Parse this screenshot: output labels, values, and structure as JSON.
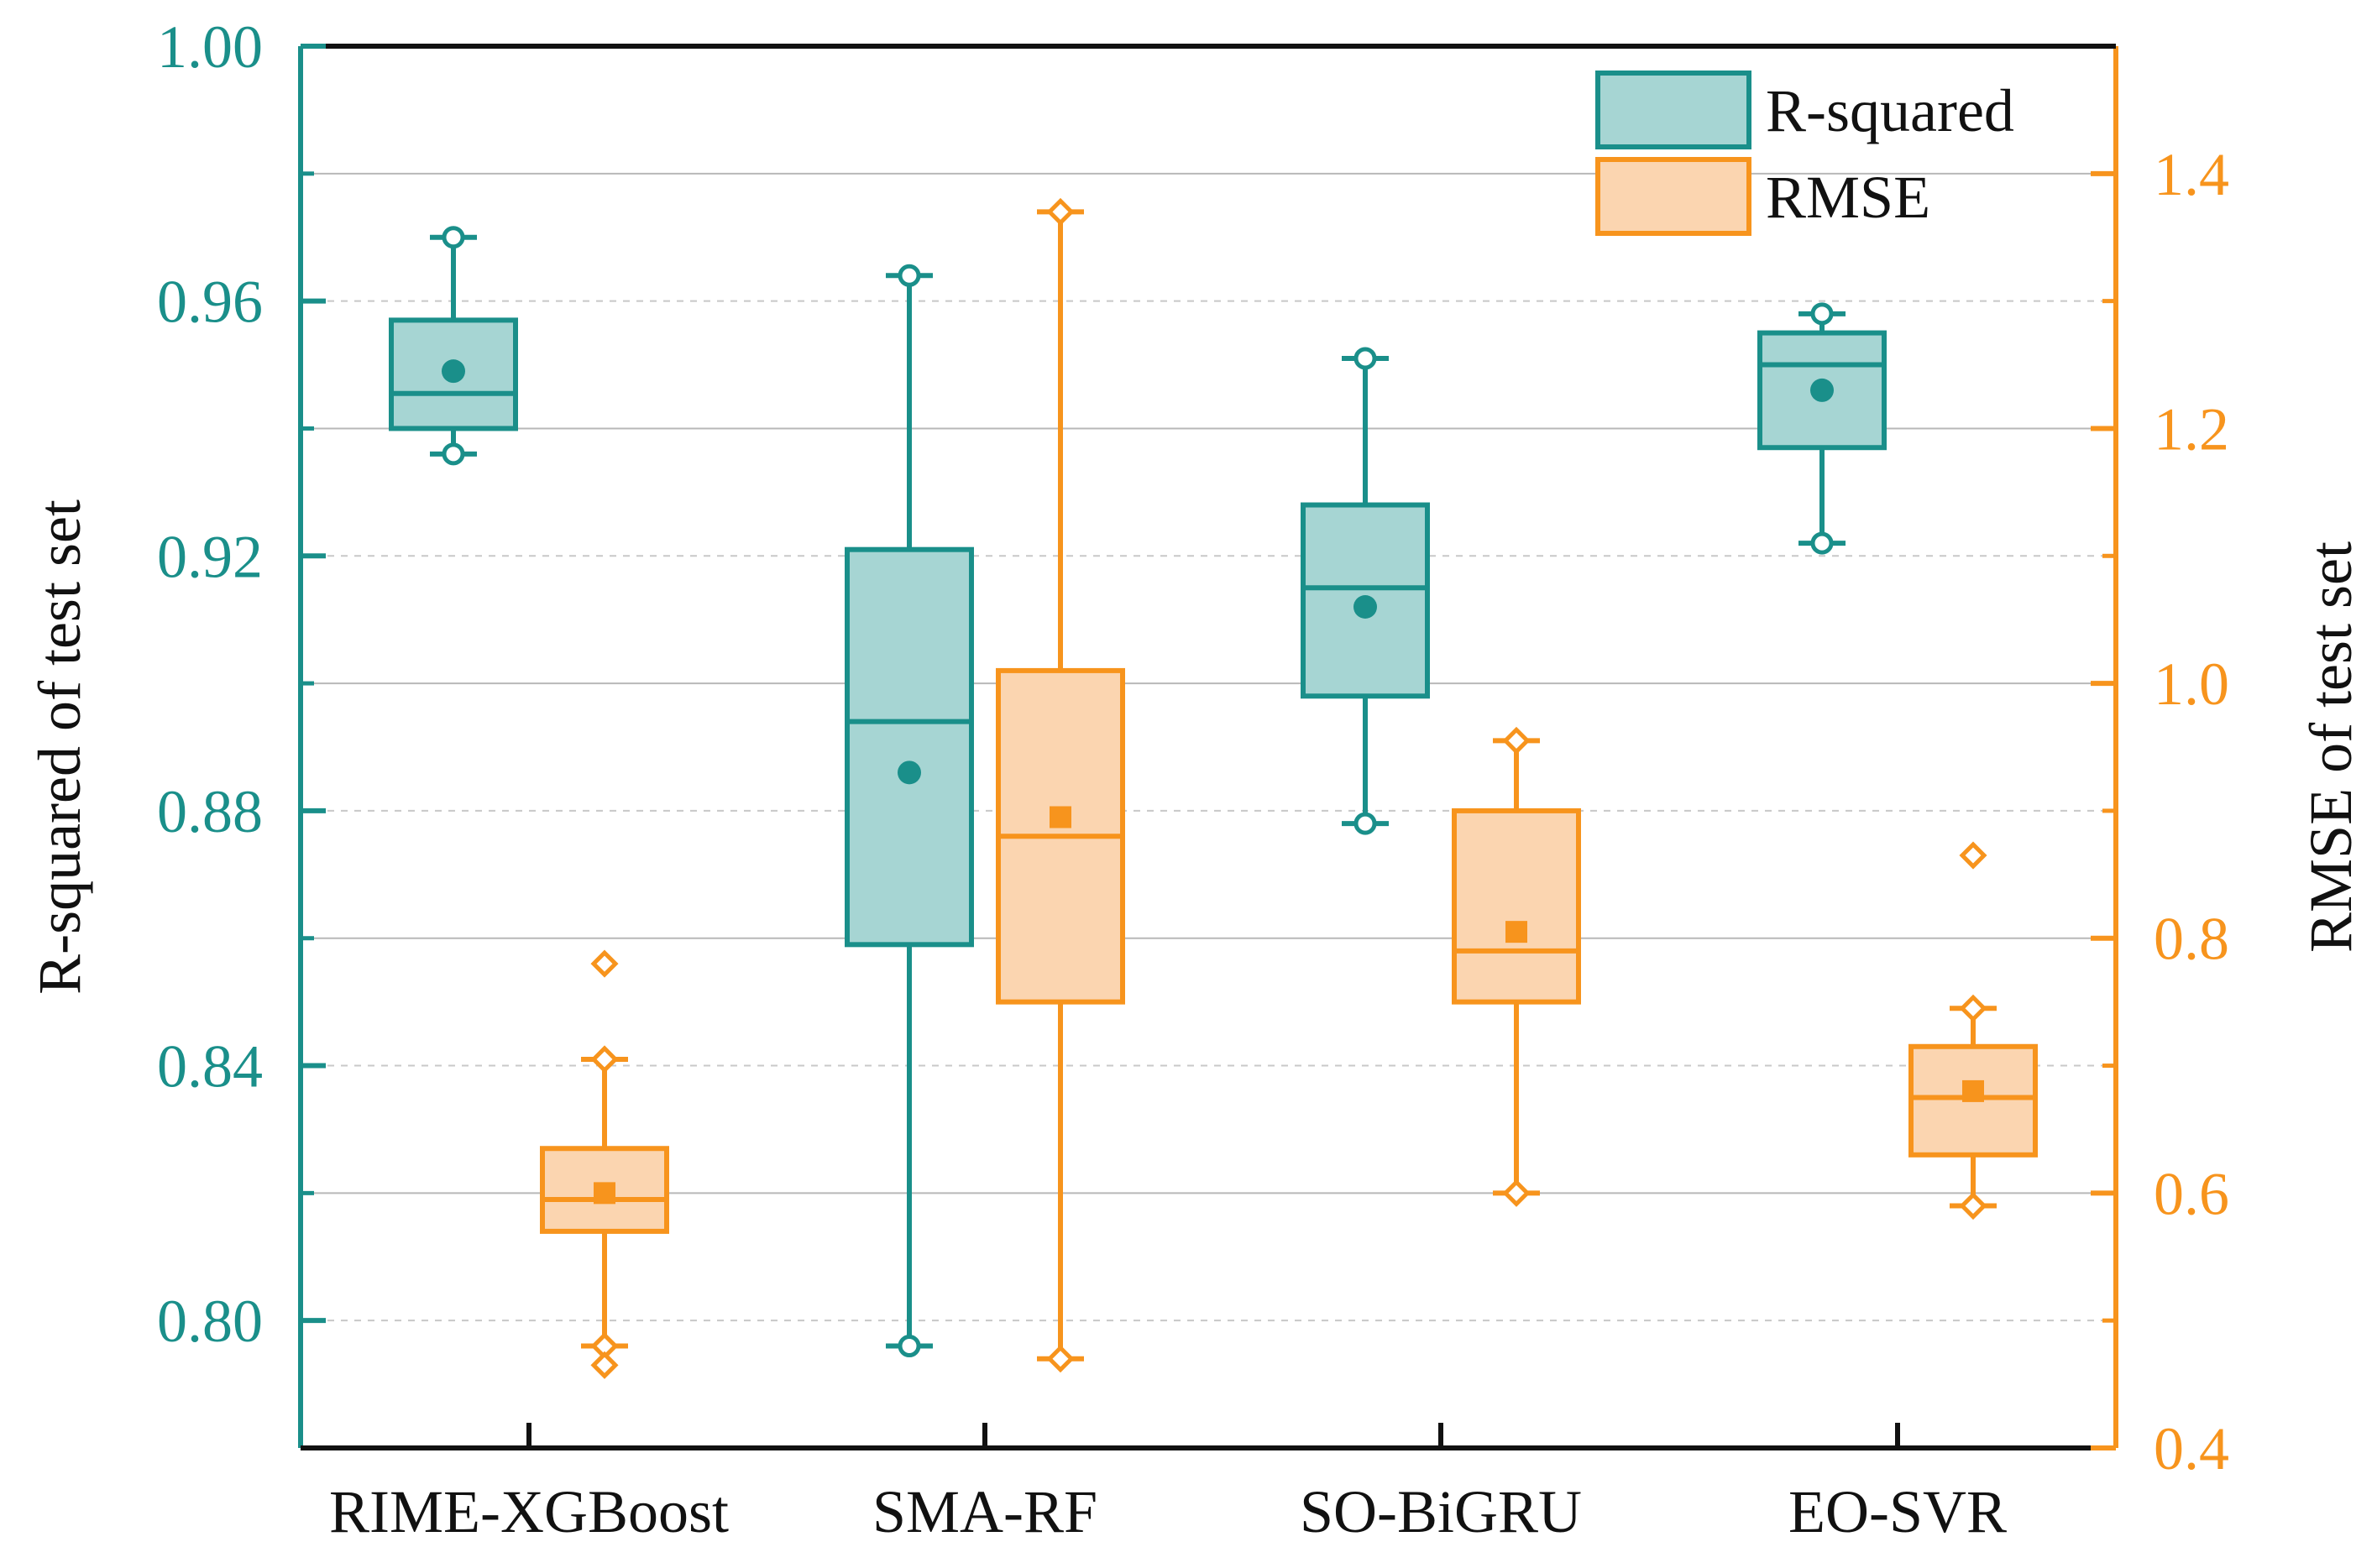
{
  "chart_data": {
    "type": "box",
    "categories": [
      "RIME-XGBoost",
      "SMA-RF",
      "SO-BiGRU",
      "EO-SVR"
    ],
    "left_axis": {
      "label": "R-squared of test set",
      "ylim": [
        0.78,
        1.0
      ],
      "ticks": [
        0.8,
        0.84,
        0.88,
        0.92,
        0.96,
        1.0
      ],
      "tick_labels": [
        "0.80",
        "0.84",
        "0.88",
        "0.92",
        "0.96",
        "1.00"
      ],
      "color": "#1a8f8a"
    },
    "right_axis": {
      "label": "RMSE of test set",
      "ylim": [
        0.4,
        1.5
      ],
      "ticks": [
        0.4,
        0.6,
        0.8,
        1.0,
        1.2,
        1.4
      ],
      "tick_labels": [
        "0.4",
        "0.6",
        "0.8",
        "1.0",
        "1.2",
        "1.4"
      ],
      "color": "#f7941d"
    },
    "grid": true,
    "legend": {
      "position": "top-right",
      "entries": [
        {
          "label": "R-squared",
          "color": "#1a8f8a",
          "fill": "#a6d5d3"
        },
        {
          "label": "RMSE",
          "color": "#f7941d",
          "fill": "#fbd5b0"
        }
      ]
    },
    "series": [
      {
        "name": "R-squared",
        "axis": "left",
        "color": "#1a8f8a",
        "fill": "#a6d5d3",
        "mean_marker": "circle",
        "boxes": [
          {
            "category": "RIME-XGBoost",
            "whisker_low": 0.936,
            "q1": 0.94,
            "median": 0.9455,
            "q3": 0.957,
            "whisker_high": 0.97,
            "mean": 0.949,
            "outliers": []
          },
          {
            "category": "SMA-RF",
            "whisker_low": 0.796,
            "q1": 0.859,
            "median": 0.894,
            "q3": 0.921,
            "whisker_high": 0.964,
            "mean": 0.886,
            "outliers": []
          },
          {
            "category": "SO-BiGRU",
            "whisker_low": 0.878,
            "q1": 0.898,
            "median": 0.915,
            "q3": 0.928,
            "whisker_high": 0.951,
            "mean": 0.912,
            "outliers": []
          },
          {
            "category": "EO-SVR",
            "whisker_low": 0.922,
            "q1": 0.937,
            "median": 0.95,
            "q3": 0.955,
            "whisker_high": 0.958,
            "mean": 0.946,
            "outliers": []
          }
        ]
      },
      {
        "name": "RMSE",
        "axis": "right",
        "color": "#f7941d",
        "fill": "#fbd5b0",
        "mean_marker": "square",
        "boxes": [
          {
            "category": "RIME-XGBoost",
            "whisker_low": 0.48,
            "q1": 0.57,
            "median": 0.595,
            "q3": 0.635,
            "whisker_high": 0.705,
            "mean": 0.6,
            "outliers": [
              0.465,
              0.78
            ]
          },
          {
            "category": "SMA-RF",
            "whisker_low": 0.47,
            "q1": 0.75,
            "median": 0.88,
            "q3": 1.01,
            "whisker_high": 1.37,
            "mean": 0.895,
            "outliers": []
          },
          {
            "category": "SO-BiGRU",
            "whisker_low": 0.6,
            "q1": 0.75,
            "median": 0.79,
            "q3": 0.9,
            "whisker_high": 0.955,
            "mean": 0.805,
            "outliers": []
          },
          {
            "category": "EO-SVR",
            "whisker_low": 0.59,
            "q1": 0.63,
            "median": 0.675,
            "q3": 0.715,
            "whisker_high": 0.745,
            "mean": 0.68,
            "outliers": [
              0.865
            ]
          }
        ]
      }
    ]
  }
}
